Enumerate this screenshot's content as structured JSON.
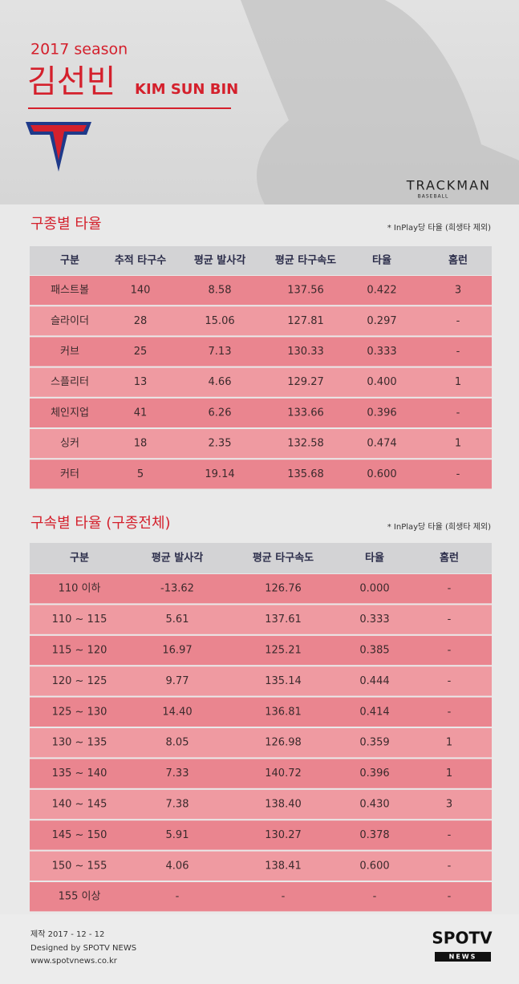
{
  "header": {
    "season": "2017 season",
    "name_ko": "김선빈",
    "name_en": "KIM SUN BIN",
    "sponsor": "TRACKMAN",
    "sponsor_sub": "BASEBALL"
  },
  "table1": {
    "title": "구종별 타율",
    "note": "* InPlay당 타율 (희생타 제외)",
    "columns": [
      "구분",
      "추적 타구수",
      "평균 발사각",
      "평균 타구속도",
      "타율",
      "홈런"
    ],
    "rows": [
      [
        "패스트볼",
        "140",
        "8.58",
        "137.56",
        "0.422",
        "3"
      ],
      [
        "슬라이더",
        "28",
        "15.06",
        "127.81",
        "0.297",
        "-"
      ],
      [
        "커브",
        "25",
        "7.13",
        "130.33",
        "0.333",
        "-"
      ],
      [
        "스플리터",
        "13",
        "4.66",
        "129.27",
        "0.400",
        "1"
      ],
      [
        "체인지업",
        "41",
        "6.26",
        "133.66",
        "0.396",
        "-"
      ],
      [
        "싱커",
        "18",
        "2.35",
        "132.58",
        "0.474",
        "1"
      ],
      [
        "커터",
        "5",
        "19.14",
        "135.68",
        "0.600",
        "-"
      ]
    ]
  },
  "table2": {
    "title": "구속별 타율 (구종전체)",
    "note": "* InPlay당 타율 (희생타 제외)",
    "columns": [
      "구분",
      "평균 발사각",
      "평균 타구속도",
      "타율",
      "홈런"
    ],
    "rows": [
      [
        "110 이하",
        "-13.62",
        "126.76",
        "0.000",
        "-"
      ],
      [
        "110 ~ 115",
        "5.61",
        "137.61",
        "0.333",
        "-"
      ],
      [
        "115 ~ 120",
        "16.97",
        "125.21",
        "0.385",
        "-"
      ],
      [
        "120 ~ 125",
        "9.77",
        "135.14",
        "0.444",
        "-"
      ],
      [
        "125 ~ 130",
        "14.40",
        "136.81",
        "0.414",
        "-"
      ],
      [
        "130 ~ 135",
        "8.05",
        "126.98",
        "0.359",
        "1"
      ],
      [
        "135 ~ 140",
        "7.33",
        "140.72",
        "0.396",
        "1"
      ],
      [
        "140 ~ 145",
        "7.38",
        "138.40",
        "0.430",
        "3"
      ],
      [
        "145 ~ 150",
        "5.91",
        "130.27",
        "0.378",
        "-"
      ],
      [
        "150 ~ 155",
        "4.06",
        "138.41",
        "0.600",
        "-"
      ],
      [
        "155 이상",
        "-",
        "-",
        "-",
        "-"
      ]
    ]
  },
  "footer": {
    "date": "제작 2017 - 12 - 12",
    "designer": "Designed by SPOTV NEWS",
    "url": "www.spotvnews.co.kr",
    "logo": "SPOTV",
    "logo_sub": "NEWS"
  }
}
